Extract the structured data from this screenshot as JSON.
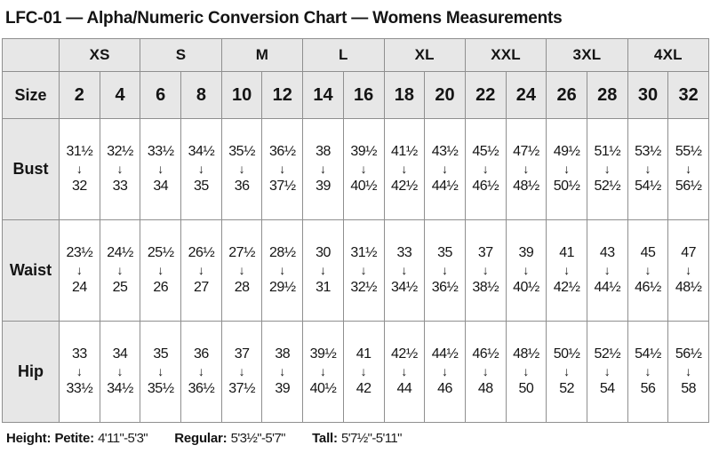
{
  "title": "LFC-01 — Alpha/Numeric Conversion Chart — Womens Measurements",
  "chart_data": {
    "type": "table",
    "title": "LFC-01 — Alpha/Numeric Conversion Chart — Womens Measurements",
    "size_label": "Size",
    "alpha_sizes": [
      "XS",
      "S",
      "M",
      "L",
      "XL",
      "XXL",
      "3XL",
      "4XL"
    ],
    "numeric_sizes": [
      "2",
      "4",
      "6",
      "8",
      "10",
      "12",
      "14",
      "16",
      "18",
      "20",
      "22",
      "24",
      "26",
      "28",
      "30",
      "32"
    ],
    "arrow_icon": "↓",
    "rows": [
      {
        "label": "Bust",
        "cells": [
          [
            "31½",
            "32"
          ],
          [
            "32½",
            "33"
          ],
          [
            "33½",
            "34"
          ],
          [
            "34½",
            "35"
          ],
          [
            "35½",
            "36"
          ],
          [
            "36½",
            "37½"
          ],
          [
            "38",
            "39"
          ],
          [
            "39½",
            "40½"
          ],
          [
            "41½",
            "42½"
          ],
          [
            "43½",
            "44½"
          ],
          [
            "45½",
            "46½"
          ],
          [
            "47½",
            "48½"
          ],
          [
            "49½",
            "50½"
          ],
          [
            "51½",
            "52½"
          ],
          [
            "53½",
            "54½"
          ],
          [
            "55½",
            "56½"
          ]
        ]
      },
      {
        "label": "Waist",
        "cells": [
          [
            "23½",
            "24"
          ],
          [
            "24½",
            "25"
          ],
          [
            "25½",
            "26"
          ],
          [
            "26½",
            "27"
          ],
          [
            "27½",
            "28"
          ],
          [
            "28½",
            "29½"
          ],
          [
            "30",
            "31"
          ],
          [
            "31½",
            "32½"
          ],
          [
            "33",
            "34½"
          ],
          [
            "35",
            "36½"
          ],
          [
            "37",
            "38½"
          ],
          [
            "39",
            "40½"
          ],
          [
            "41",
            "42½"
          ],
          [
            "43",
            "44½"
          ],
          [
            "45",
            "46½"
          ],
          [
            "47",
            "48½"
          ]
        ]
      },
      {
        "label": "Hip",
        "cells": [
          [
            "33",
            "33½"
          ],
          [
            "34",
            "34½"
          ],
          [
            "35",
            "35½"
          ],
          [
            "36",
            "36½"
          ],
          [
            "37",
            "37½"
          ],
          [
            "38",
            "39"
          ],
          [
            "39½",
            "40½"
          ],
          [
            "41",
            "42"
          ],
          [
            "42½",
            "44"
          ],
          [
            "44½",
            "46"
          ],
          [
            "46½",
            "48"
          ],
          [
            "48½",
            "50"
          ],
          [
            "50½",
            "52"
          ],
          [
            "52½",
            "54"
          ],
          [
            "54½",
            "56"
          ],
          [
            "56½",
            "58"
          ]
        ]
      }
    ]
  },
  "footer": {
    "height_label": "Height:",
    "entries": [
      {
        "label": "Petite:",
        "range": "4'11\"-5'3\""
      },
      {
        "label": "Regular:",
        "range": "5'3½\"-5'7\""
      },
      {
        "label": "Tall:",
        "range": "5'7½\"-5'11\""
      }
    ]
  },
  "colors": {
    "header_bg": "#e7e7e7",
    "border": "#8f8f8f",
    "text": "#141414"
  }
}
